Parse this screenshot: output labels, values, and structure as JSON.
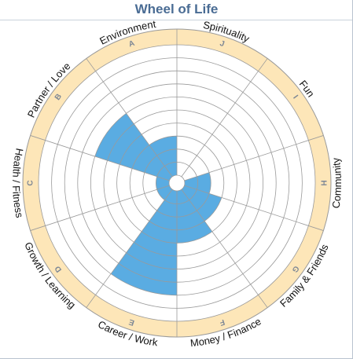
{
  "title": "Wheel of Life",
  "colors": {
    "fill": "#5aace2",
    "ring": "#fde6b8",
    "line": "#9a9a9a",
    "title": "#4a6c94"
  },
  "chart_data": {
    "type": "polar-area",
    "title": "Wheel of Life",
    "scale_max": 10,
    "rings": 10,
    "segments": [
      {
        "letter": "J",
        "category": "Spirituality",
        "value": 0
      },
      {
        "letter": "I",
        "category": "Fun",
        "value": 0
      },
      {
        "letter": "H",
        "category": "Community",
        "value": 2
      },
      {
        "letter": "G",
        "category": "Family & Friends",
        "value": 3
      },
      {
        "letter": "F",
        "category": "Money / Finance",
        "value": 4
      },
      {
        "letter": "E",
        "category": "Career / Work",
        "value": 8
      },
      {
        "letter": "D",
        "category": "Growth / Learning",
        "value": 1
      },
      {
        "letter": "C",
        "category": "Health / Fitness",
        "value": 1
      },
      {
        "letter": "B",
        "category": "Partner / Love",
        "value": 6
      },
      {
        "letter": "A",
        "category": "Environment",
        "value": 3
      }
    ]
  }
}
